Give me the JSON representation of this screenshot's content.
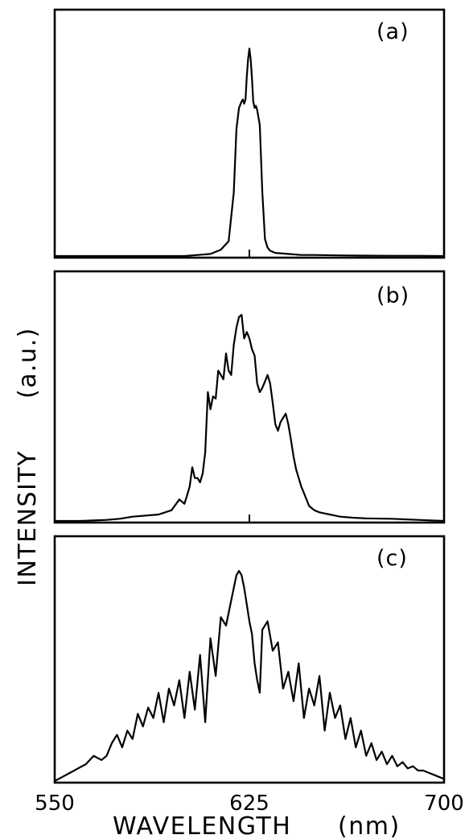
{
  "chart_data": [
    {
      "panel": "(a)",
      "type": "line",
      "x": [
        550,
        560,
        570,
        580,
        590,
        600,
        605,
        610,
        614,
        617,
        619,
        620,
        621,
        622,
        622.5,
        623,
        623.5,
        624,
        624.5,
        625,
        625.5,
        626,
        626.5,
        627,
        627.5,
        628,
        629,
        630,
        631,
        632,
        633,
        635,
        640,
        645,
        650,
        660,
        670,
        680,
        690,
        700
      ],
      "y": [
        0,
        0,
        0,
        0,
        0,
        0,
        0.005,
        0.01,
        0.03,
        0.07,
        0.3,
        0.6,
        0.7,
        0.73,
        0.74,
        0.72,
        0.74,
        0.85,
        0.93,
        0.98,
        0.93,
        0.84,
        0.73,
        0.7,
        0.71,
        0.69,
        0.62,
        0.3,
        0.08,
        0.04,
        0.025,
        0.015,
        0.01,
        0.005,
        0.005,
        0.003,
        0.002,
        0.001,
        0.001,
        0
      ],
      "xlim": [
        550,
        700
      ],
      "ylim": [
        0,
        1.05
      ],
      "center_tick": 625
    },
    {
      "panel": "(b)",
      "type": "line",
      "x": [
        550,
        560,
        570,
        575,
        580,
        590,
        595,
        598,
        600,
        601,
        602,
        603,
        604,
        605,
        606,
        607,
        608,
        609,
        610,
        611,
        612,
        613,
        614,
        615,
        616,
        617,
        618,
        619,
        620,
        621,
        622,
        623,
        624,
        625,
        626,
        627,
        628,
        629,
        630,
        631,
        632,
        633,
        634,
        635,
        636,
        637,
        638,
        639,
        640,
        641,
        642,
        643,
        644,
        645,
        646,
        647,
        648,
        649,
        650,
        652,
        654,
        656,
        658,
        660,
        665,
        670,
        680,
        690,
        700
      ],
      "y": [
        0,
        0,
        0.005,
        0.01,
        0.02,
        0.03,
        0.05,
        0.1,
        0.08,
        0.12,
        0.16,
        0.25,
        0.2,
        0.2,
        0.18,
        0.22,
        0.32,
        0.6,
        0.52,
        0.58,
        0.57,
        0.7,
        0.68,
        0.66,
        0.78,
        0.7,
        0.68,
        0.82,
        0.9,
        0.95,
        0.96,
        0.85,
        0.88,
        0.85,
        0.8,
        0.77,
        0.64,
        0.6,
        0.62,
        0.65,
        0.68,
        0.64,
        0.55,
        0.45,
        0.42,
        0.46,
        0.48,
        0.5,
        0.45,
        0.38,
        0.3,
        0.24,
        0.2,
        0.16,
        0.13,
        0.1,
        0.07,
        0.06,
        0.05,
        0.04,
        0.035,
        0.03,
        0.025,
        0.02,
        0.015,
        0.012,
        0.01,
        0.005,
        0
      ],
      "xlim": [
        550,
        700
      ],
      "ylim": [
        0,
        1.05
      ],
      "center_tick": 625
    },
    {
      "panel": "(c)",
      "type": "line",
      "x": [
        550,
        553,
        556,
        559,
        562,
        565,
        568,
        570,
        572,
        574,
        576,
        578,
        580,
        582,
        584,
        586,
        588,
        590,
        592,
        594,
        596,
        598,
        600,
        602,
        604,
        606,
        608,
        610,
        612,
        614,
        616,
        618,
        620,
        621,
        622,
        623,
        624,
        625,
        626,
        627,
        628,
        629,
        630,
        632,
        634,
        636,
        638,
        640,
        642,
        644,
        646,
        648,
        650,
        652,
        654,
        656,
        658,
        660,
        662,
        664,
        666,
        668,
        670,
        672,
        674,
        676,
        678,
        680,
        682,
        684,
        686,
        688,
        690,
        692,
        694,
        696,
        698,
        700
      ],
      "y": [
        0,
        0.02,
        0.04,
        0.06,
        0.08,
        0.12,
        0.1,
        0.12,
        0.18,
        0.22,
        0.16,
        0.24,
        0.2,
        0.32,
        0.26,
        0.35,
        0.3,
        0.42,
        0.28,
        0.44,
        0.36,
        0.48,
        0.3,
        0.52,
        0.34,
        0.6,
        0.28,
        0.68,
        0.5,
        0.78,
        0.74,
        0.86,
        0.98,
        1.0,
        0.98,
        0.92,
        0.84,
        0.76,
        0.7,
        0.56,
        0.48,
        0.42,
        0.72,
        0.76,
        0.62,
        0.66,
        0.44,
        0.52,
        0.38,
        0.56,
        0.3,
        0.44,
        0.36,
        0.5,
        0.24,
        0.42,
        0.3,
        0.36,
        0.2,
        0.3,
        0.16,
        0.24,
        0.12,
        0.18,
        0.1,
        0.14,
        0.08,
        0.12,
        0.07,
        0.09,
        0.06,
        0.07,
        0.05,
        0.05,
        0.04,
        0.03,
        0.02,
        0.01
      ],
      "xlim": [
        550,
        700
      ],
      "ylim": [
        0,
        1.05
      ],
      "center_tick": 625
    }
  ],
  "axes": {
    "xlabel": "WAVELENGTH",
    "xunit": "(nm)",
    "ylabel": "INTENSITY",
    "yunit": "(a.u.)",
    "xtick_labels": [
      "550",
      "625",
      "700"
    ]
  }
}
